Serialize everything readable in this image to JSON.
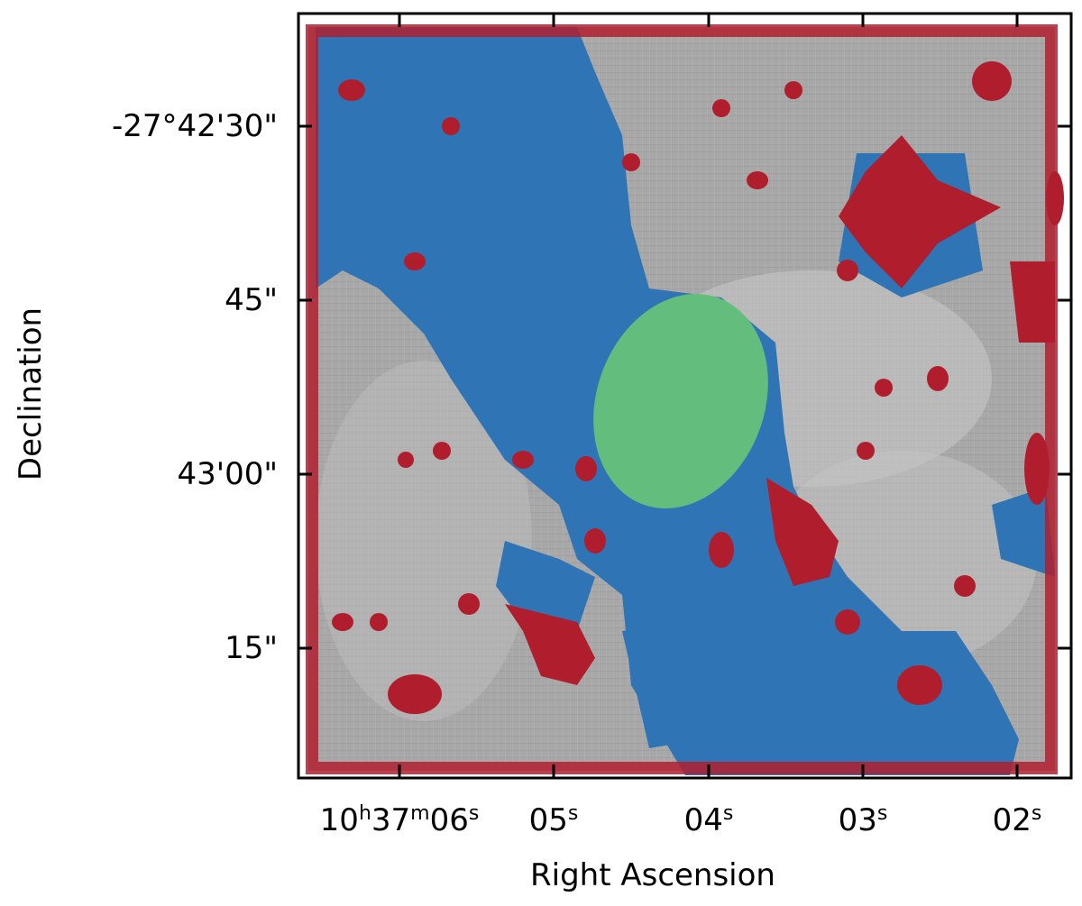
{
  "image": {
    "type": "astronomical-image-with-segmentation-mask",
    "colors": {
      "background_gray_light": "#d8d8d8",
      "background_gray_dark": "#8c8c8c",
      "sky_blue": "#2f74b5",
      "source_red": "#b01e2e",
      "target_green": "#66c17a"
    }
  },
  "axes": {
    "xlabel": "Right Ascension",
    "ylabel": "Declination",
    "xticks": [
      {
        "h": "10",
        "hu": "h",
        "m": "37",
        "mu": "m",
        "s": "06",
        "su": "s",
        "text": ""
      },
      {
        "s": "05",
        "su": "s"
      },
      {
        "s": "04",
        "su": "s"
      },
      {
        "s": "03",
        "su": "s"
      },
      {
        "s": "02",
        "su": "s"
      }
    ],
    "yticks": [
      "-27°42'30\"",
      "45\"",
      "43'00\"",
      "15\""
    ]
  }
}
